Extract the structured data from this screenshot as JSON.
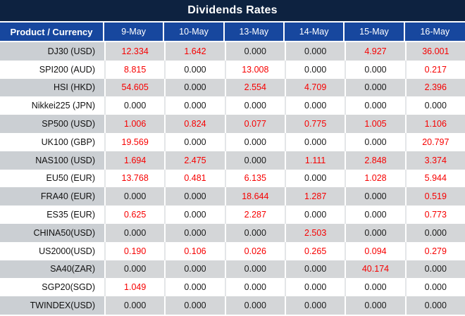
{
  "title": "Dividends Rates",
  "colors": {
    "title_bg": "#0D2240",
    "header_bg": "#17479E",
    "row_stripe": "#D4D6D8",
    "nonzero_value": "#F70000",
    "zero_value": "#1A1A1A"
  },
  "chart_data": {
    "type": "table",
    "title": "Dividends Rates",
    "product_header": "Product / Currency",
    "date_columns": [
      "9-May",
      "10-May",
      "13-May",
      "14-May",
      "15-May",
      "16-May"
    ],
    "rows": [
      {
        "product": "DJ30 (USD)",
        "values": [
          "12.334",
          "1.642",
          "0.000",
          "0.000",
          "4.927",
          "36.001"
        ]
      },
      {
        "product": "SPI200 (AUD)",
        "values": [
          "8.815",
          "0.000",
          "13.008",
          "0.000",
          "0.000",
          "0.217"
        ]
      },
      {
        "product": "HSI (HKD)",
        "values": [
          "54.605",
          "0.000",
          "2.554",
          "4.709",
          "0.000",
          "2.396"
        ]
      },
      {
        "product": "Nikkei225 (JPN)",
        "values": [
          "0.000",
          "0.000",
          "0.000",
          "0.000",
          "0.000",
          "0.000"
        ]
      },
      {
        "product": "SP500 (USD)",
        "values": [
          "1.006",
          "0.824",
          "0.077",
          "0.775",
          "1.005",
          "1.106"
        ]
      },
      {
        "product": "UK100 (GBP)",
        "values": [
          "19.569",
          "0.000",
          "0.000",
          "0.000",
          "0.000",
          "20.797"
        ]
      },
      {
        "product": "NAS100 (USD)",
        "values": [
          "1.694",
          "2.475",
          "0.000",
          "1.111",
          "2.848",
          "3.374"
        ]
      },
      {
        "product": "EU50 (EUR)",
        "values": [
          "13.768",
          "0.481",
          "6.135",
          "0.000",
          "1.028",
          "5.944"
        ]
      },
      {
        "product": "FRA40 (EUR)",
        "values": [
          "0.000",
          "0.000",
          "18.644",
          "1.287",
          "0.000",
          "0.519"
        ]
      },
      {
        "product": "ES35 (EUR)",
        "values": [
          "0.625",
          "0.000",
          "2.287",
          "0.000",
          "0.000",
          "0.773"
        ]
      },
      {
        "product": "CHINA50(USD)",
        "values": [
          "0.000",
          "0.000",
          "0.000",
          "2.503",
          "0.000",
          "0.000"
        ]
      },
      {
        "product": "US2000(USD)",
        "values": [
          "0.190",
          "0.106",
          "0.026",
          "0.265",
          "0.094",
          "0.279"
        ]
      },
      {
        "product": "SA40(ZAR)",
        "values": [
          "0.000",
          "0.000",
          "0.000",
          "0.000",
          "40.174",
          "0.000"
        ]
      },
      {
        "product": "SGP20(SGD)",
        "values": [
          "1.049",
          "0.000",
          "0.000",
          "0.000",
          "0.000",
          "0.000"
        ]
      },
      {
        "product": "TWINDEX(USD)",
        "values": [
          "0.000",
          "0.000",
          "0.000",
          "0.000",
          "0.000",
          "0.000"
        ]
      }
    ]
  }
}
